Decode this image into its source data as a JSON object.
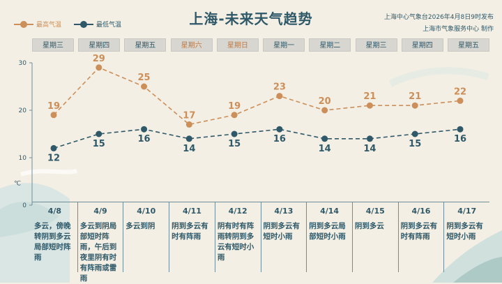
{
  "title": "上海-未来天气趋势",
  "issuer": {
    "line1": "上海中心气象台2026年4月8日9时发布",
    "line2": "上海市气象服务中心  制作"
  },
  "legend": {
    "high_label": "最高气温",
    "low_label": "最低气温"
  },
  "colors": {
    "high": "#cc8f5a",
    "low": "#2f5868",
    "weekend_text": "#c07a45"
  },
  "chart_data": {
    "type": "line",
    "categories": [
      "4/8",
      "4/9",
      "4/10",
      "4/11",
      "4/12",
      "4/13",
      "4/14",
      "4/15",
      "4/16",
      "4/17"
    ],
    "series": [
      {
        "name": "最高气温",
        "values": [
          19,
          29,
          25,
          17,
          19,
          23,
          20,
          21,
          21,
          22
        ]
      },
      {
        "name": "最低气温",
        "values": [
          12,
          15,
          16,
          14,
          15,
          16,
          14,
          14,
          15,
          16
        ]
      }
    ],
    "yunit": "℃",
    "yticks": [
      0,
      10,
      20,
      30
    ],
    "ylim": [
      0,
      30
    ],
    "line_style": "dashed",
    "grid": false
  },
  "days": [
    {
      "weekday": "星期三",
      "weekend": false,
      "date": "4/8",
      "desc": "多云，傍晚转阴到多云局部短时阵雨"
    },
    {
      "weekday": "星期四",
      "weekend": false,
      "date": "4/9",
      "desc": "多云到阴局部短时阵雨，午后到夜里阴有时有阵雨或雷雨"
    },
    {
      "weekday": "星期五",
      "weekend": false,
      "date": "4/10",
      "desc": "多云到阴"
    },
    {
      "weekday": "星期六",
      "weekend": true,
      "date": "4/11",
      "desc": "阴到多云有时有阵雨"
    },
    {
      "weekday": "星期日",
      "weekend": true,
      "date": "4/12",
      "desc": "阴有时有阵雨转阴到多云有短时小雨"
    },
    {
      "weekday": "星期一",
      "weekend": false,
      "date": "4/13",
      "desc": "阴到多云有短时小雨"
    },
    {
      "weekday": "星期二",
      "weekend": false,
      "date": "4/14",
      "desc": "阴到多云局部短时小雨"
    },
    {
      "weekday": "星期三",
      "weekend": false,
      "date": "4/15",
      "desc": "阴到多云"
    },
    {
      "weekday": "星期四",
      "weekend": false,
      "date": "4/16",
      "desc": "阴到多云有时有阵雨"
    },
    {
      "weekday": "星期五",
      "weekend": false,
      "date": "4/17",
      "desc": "阴到多云有短时小雨"
    }
  ]
}
